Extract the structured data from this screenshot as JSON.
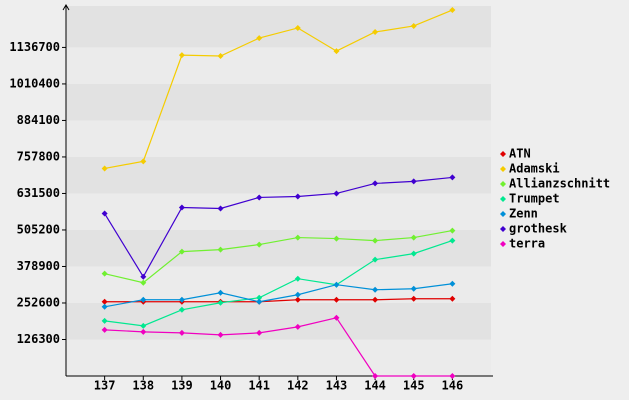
{
  "chart_data": {
    "type": "line",
    "x": [
      137,
      138,
      139,
      140,
      141,
      142,
      143,
      144,
      145,
      146
    ],
    "xlim": [
      136,
      147
    ],
    "xticks": [
      137,
      138,
      139,
      140,
      141,
      142,
      143,
      144,
      145,
      146
    ],
    "ylim": [
      0,
      1280000
    ],
    "yticks": [
      126300,
      252600,
      378900,
      505200,
      631500,
      757800,
      884100,
      1010400,
      1136700
    ],
    "legend": "right",
    "series": [
      {
        "name": "ATN",
        "color": "#e00000",
        "values": [
          256800,
          256800,
          256800,
          256800,
          256800,
          263700,
          263700,
          263700,
          267200,
          267200
        ]
      },
      {
        "name": "Adamski",
        "color": "#f5cc00",
        "values": [
          718000,
          742600,
          1110000,
          1107000,
          1169000,
          1204000,
          1124000,
          1190000,
          1211000,
          1266000
        ]
      },
      {
        "name": "Allianzschnitt",
        "color": "#70f030",
        "values": [
          354000,
          322700,
          430300,
          437200,
          454600,
          478900,
          475400,
          468400,
          478900,
          503100
        ]
      },
      {
        "name": "Trumpet",
        "color": "#00e890",
        "values": [
          190800,
          173500,
          229000,
          253300,
          270700,
          336600,
          315800,
          402500,
          423400,
          468400
        ]
      },
      {
        "name": "Zenn",
        "color": "#0090d8",
        "values": [
          239400,
          263700,
          263700,
          288000,
          256800,
          281100,
          315800,
          298400,
          301900,
          319200
        ]
      },
      {
        "name": "grothesk",
        "color": "#4000d0",
        "values": [
          562100,
          343500,
          583000,
          579500,
          617700,
          621100,
          631500,
          666200,
          673200,
          687000
        ]
      },
      {
        "name": "terra",
        "color": "#f000c0",
        "values": [
          159600,
          152700,
          149200,
          142300,
          149200,
          170000,
          201300,
          0,
          0,
          0
        ]
      }
    ]
  }
}
